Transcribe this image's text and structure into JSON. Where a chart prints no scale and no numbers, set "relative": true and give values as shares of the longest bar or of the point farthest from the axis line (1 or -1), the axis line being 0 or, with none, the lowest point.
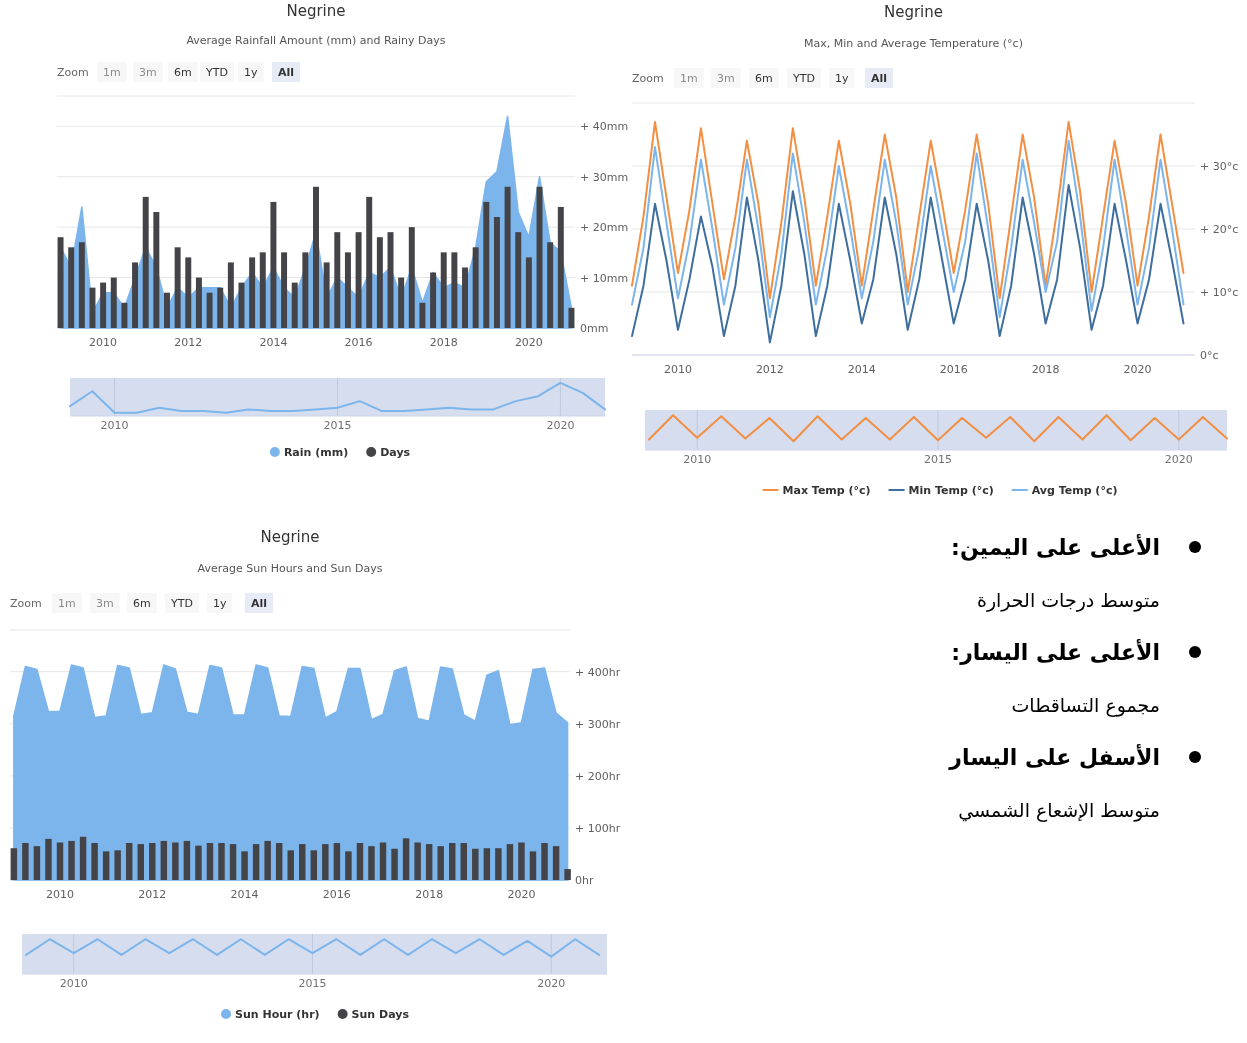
{
  "chart_data": [
    {
      "type": "bar",
      "title": "Negrine",
      "subtitle": "Average Rainfall Amount (mm) and Rainy Days",
      "annotations": [
        "Zoom",
        "1m",
        "3m",
        "6m",
        "YTD",
        "1y",
        "All"
      ],
      "x": [
        "2009-01",
        "2009-04",
        "2009-07",
        "2009-10",
        "2010-01",
        "2010-04",
        "2010-07",
        "2010-10",
        "2011-01",
        "2011-04",
        "2011-07",
        "2011-10",
        "2012-01",
        "2012-04",
        "2012-07",
        "2012-10",
        "2013-01",
        "2013-04",
        "2013-07",
        "2013-10",
        "2014-01",
        "2014-04",
        "2014-07",
        "2014-10",
        "2015-01",
        "2015-04",
        "2015-07",
        "2015-10",
        "2016-01",
        "2016-04",
        "2016-07",
        "2016-10",
        "2017-01",
        "2017-04",
        "2017-07",
        "2017-10",
        "2018-01",
        "2018-04",
        "2018-07",
        "2018-10",
        "2019-01",
        "2019-04",
        "2019-07",
        "2019-10",
        "2020-01",
        "2020-04",
        "2020-07",
        "2020-10",
        "2021-01"
      ],
      "series": [
        {
          "name": "Rain (mm)",
          "type": "area",
          "color": "#7cb5ec",
          "values": [
            16,
            12,
            24,
            3,
            7,
            7,
            4,
            10,
            16,
            12,
            4,
            8,
            6,
            8,
            8,
            8,
            4,
            8,
            11,
            8,
            12,
            8,
            6,
            12,
            19,
            6,
            10,
            8,
            6,
            11,
            10,
            12,
            6,
            12,
            5,
            11,
            8,
            9,
            8,
            16,
            29,
            31,
            42,
            23,
            18,
            30,
            17,
            15,
            4
          ]
        },
        {
          "name": "Days",
          "type": "bar",
          "color": "#434348",
          "values": [
            18,
            16,
            17,
            8,
            9,
            10,
            5,
            13,
            26,
            23,
            7,
            16,
            14,
            10,
            7,
            8,
            13,
            9,
            14,
            15,
            25,
            15,
            9,
            15,
            28,
            13,
            19,
            15,
            19,
            26,
            18,
            19,
            10,
            20,
            5,
            11,
            15,
            15,
            12,
            16,
            25,
            22,
            28,
            19,
            14,
            28,
            17,
            24,
            4
          ]
        }
      ],
      "xlim": [
        "2008-12",
        "2021-02"
      ],
      "ylim": [
        0,
        46
      ],
      "xticks": [
        "2010",
        "2012",
        "2014",
        "2016",
        "2018",
        "2020"
      ],
      "yticks": [
        {
          "value": 0,
          "label": "0mm"
        },
        {
          "value": 10,
          "label": "+ 10mm"
        },
        {
          "value": 20,
          "label": "+ 20mm"
        },
        {
          "value": 30,
          "label": "+ 30mm"
        },
        {
          "value": 40,
          "label": "+ 40mm"
        }
      ],
      "grid": "y",
      "legend": "bottom"
    },
    {
      "type": "line",
      "relative": true,
      "x": [
        "2009-01",
        "2009-07",
        "2010-01",
        "2010-07",
        "2011-01",
        "2011-07",
        "2012-01",
        "2012-07",
        "2013-01",
        "2013-07",
        "2014-01",
        "2014-07",
        "2015-01",
        "2015-07",
        "2016-01",
        "2016-07",
        "2017-01",
        "2017-07",
        "2018-01",
        "2018-07",
        "2019-01",
        "2019-07",
        "2020-01",
        "2020-07",
        "2021-01"
      ],
      "series": [
        {
          "color": "#7cb5ec",
          "values": [
            0.3,
            0.75,
            0.1,
            0.1,
            0.25,
            0.15,
            0.15,
            0.1,
            0.2,
            0.15,
            0.15,
            0.2,
            0.25,
            0.45,
            0.15,
            0.15,
            0.2,
            0.25,
            0.2,
            0.2,
            0.45,
            0.6,
            1,
            0.7,
            0.2
          ]
        }
      ],
      "xlim": [
        "2009",
        "2021"
      ],
      "xticks": [
        "2010",
        "2015",
        "2020"
      ],
      "grid": "x"
    },
    {
      "type": "line",
      "title": "Negrine",
      "subtitle": "Max, Min and Average Temperature (°c)",
      "annotations": [
        "Zoom",
        "1m",
        "3m",
        "6m",
        "YTD",
        "1y",
        "All"
      ],
      "x": [
        "2009-01",
        "2009-04",
        "2009-07",
        "2009-10",
        "2010-01",
        "2010-04",
        "2010-07",
        "2010-10",
        "2011-01",
        "2011-04",
        "2011-07",
        "2011-10",
        "2012-01",
        "2012-04",
        "2012-07",
        "2012-10",
        "2013-01",
        "2013-04",
        "2013-07",
        "2013-10",
        "2014-01",
        "2014-04",
        "2014-07",
        "2014-10",
        "2015-01",
        "2015-04",
        "2015-07",
        "2015-10",
        "2016-01",
        "2016-04",
        "2016-07",
        "2016-10",
        "2017-01",
        "2017-04",
        "2017-07",
        "2017-10",
        "2018-01",
        "2018-04",
        "2018-07",
        "2018-10",
        "2019-01",
        "2019-04",
        "2019-07",
        "2019-10",
        "2020-01",
        "2020-04",
        "2020-07",
        "2020-10",
        "2021-01"
      ],
      "series": [
        {
          "name": "Max Temp (°c)",
          "color": "#f28f43",
          "values": [
            11,
            22,
            37,
            25,
            13,
            23,
            36,
            24,
            12,
            22,
            34,
            24,
            9,
            21,
            36,
            25,
            11,
            22,
            34,
            24,
            11,
            23,
            35,
            25,
            10,
            22,
            34,
            24,
            13,
            23,
            35,
            24,
            9,
            22,
            35,
            25,
            11,
            23,
            37,
            26,
            10,
            22,
            34,
            24,
            11,
            22,
            35,
            24,
            13
          ]
        },
        {
          "name": "Min Temp (°c)",
          "color": "#3d6e9e",
          "values": [
            3,
            11,
            24,
            15,
            4,
            12,
            22,
            14,
            3,
            11,
            25,
            15,
            2,
            11,
            26,
            16,
            3,
            11,
            24,
            15,
            5,
            12,
            25,
            16,
            4,
            12,
            25,
            15,
            5,
            12,
            24,
            15,
            3,
            11,
            25,
            16,
            5,
            12,
            27,
            17,
            4,
            11,
            24,
            15,
            5,
            12,
            24,
            15,
            5
          ]
        },
        {
          "name": "Avg Temp (°c)",
          "color": "#7cb5ec",
          "values": [
            8,
            17,
            33,
            21,
            9,
            18,
            31,
            20,
            8,
            17,
            31,
            20,
            6,
            16,
            32,
            21,
            8,
            17,
            30,
            20,
            9,
            18,
            31,
            21,
            8,
            17,
            30,
            20,
            10,
            18,
            32,
            20,
            6,
            17,
            31,
            21,
            10,
            18,
            34,
            22,
            7,
            17,
            31,
            20,
            8,
            17,
            31,
            20,
            8
          ]
        }
      ],
      "xlim": [
        "2009-01",
        "2021-04"
      ],
      "ylim": [
        0,
        40
      ],
      "xticks": [
        "2010",
        "2012",
        "2014",
        "2016",
        "2018",
        "2020"
      ],
      "yticks": [
        {
          "value": 0,
          "label": "0°c"
        },
        {
          "value": 10,
          "label": "+ 10°c"
        },
        {
          "value": 20,
          "label": "+ 20°c"
        },
        {
          "value": 30,
          "label": "+ 30°c"
        }
      ],
      "grid": "y",
      "legend": "bottom"
    },
    {
      "type": "line",
      "relative": true,
      "x": [
        "2009-01",
        "2009-07",
        "2010-01",
        "2010-07",
        "2011-01",
        "2011-07",
        "2012-01",
        "2012-07",
        "2013-01",
        "2013-07",
        "2014-01",
        "2014-07",
        "2015-01",
        "2015-07",
        "2016-01",
        "2016-07",
        "2017-01",
        "2017-07",
        "2018-01",
        "2018-07",
        "2019-01",
        "2019-07",
        "2020-01",
        "2020-07",
        "2021-01"
      ],
      "series": [
        {
          "color": "#f28f43",
          "values": [
            0.3,
            1,
            0.35,
            0.97,
            0.33,
            0.92,
            0.25,
            0.97,
            0.3,
            0.92,
            0.3,
            0.95,
            0.28,
            0.92,
            0.35,
            0.95,
            0.25,
            0.95,
            0.3,
            1,
            0.28,
            0.92,
            0.3,
            0.95,
            0.33
          ]
        }
      ],
      "xlim": [
        "2008-12",
        "2021-01"
      ],
      "xticks": [
        "2010",
        "2015",
        "2020"
      ],
      "grid": "x"
    },
    {
      "type": "bar",
      "title": "Negrine",
      "subtitle": "Average Sun Hours and Sun Days",
      "annotations": [
        "Zoom",
        "1m",
        "3m",
        "6m",
        "YTD",
        "1y",
        "All"
      ],
      "x": [
        "2009-01",
        "2009-04",
        "2009-07",
        "2009-10",
        "2010-01",
        "2010-04",
        "2010-07",
        "2010-10",
        "2011-01",
        "2011-04",
        "2011-07",
        "2011-10",
        "2012-01",
        "2012-04",
        "2012-07",
        "2012-10",
        "2013-01",
        "2013-04",
        "2013-07",
        "2013-10",
        "2014-01",
        "2014-04",
        "2014-07",
        "2014-10",
        "2015-01",
        "2015-04",
        "2015-07",
        "2015-10",
        "2016-01",
        "2016-04",
        "2016-07",
        "2016-10",
        "2017-01",
        "2017-04",
        "2017-07",
        "2017-10",
        "2018-01",
        "2018-04",
        "2018-07",
        "2018-10",
        "2019-01",
        "2019-04",
        "2019-07",
        "2019-10",
        "2020-01",
        "2020-04",
        "2020-07",
        "2020-10",
        "2021-01"
      ],
      "series": [
        {
          "name": "Sun Hour (hr)",
          "type": "area",
          "color": "#7cb5ec",
          "values": [
            315,
            410,
            404,
            323,
            324,
            413,
            407,
            312,
            315,
            412,
            407,
            318,
            321,
            413,
            405,
            322,
            318,
            412,
            407,
            317,
            317,
            413,
            407,
            315,
            314,
            410,
            406,
            311,
            323,
            406,
            406,
            308,
            318,
            402,
            409,
            310,
            305,
            409,
            405,
            317,
            305,
            393,
            402,
            298,
            302,
            404,
            407,
            321,
            302
          ]
        },
        {
          "name": "Sun Days",
          "type": "bar",
          "color": "#434348",
          "values": [
            61,
            71,
            65,
            79,
            72,
            75,
            83,
            71,
            55,
            57,
            71,
            69,
            71,
            75,
            72,
            75,
            66,
            71,
            71,
            69,
            55,
            69,
            75,
            71,
            57,
            69,
            57,
            69,
            71,
            55,
            71,
            65,
            72,
            60,
            80,
            72,
            69,
            65,
            71,
            71,
            60,
            61,
            61,
            69,
            72,
            55,
            71,
            65,
            21
          ]
        }
      ],
      "xlim": [
        "2008-12",
        "2021-01-20"
      ],
      "ylim": [
        0,
        480
      ],
      "xticks": [
        "2010",
        "2012",
        "2014",
        "2016",
        "2018",
        "2020"
      ],
      "yticks": [
        {
          "value": 0,
          "label": "0hr"
        },
        {
          "value": 100,
          "label": "+ 100hr"
        },
        {
          "value": 200,
          "label": "+ 200hr"
        },
        {
          "value": 300,
          "label": "+ 300hr"
        },
        {
          "value": 400,
          "label": "+ 400hr"
        }
      ],
      "grid": "y",
      "legend": "bottom"
    },
    {
      "type": "line",
      "relative": true,
      "x": [
        "2009-01",
        "2009-07",
        "2010-01",
        "2010-07",
        "2011-01",
        "2011-07",
        "2012-01",
        "2012-07",
        "2013-01",
        "2013-07",
        "2014-01",
        "2014-07",
        "2015-01",
        "2015-07",
        "2016-01",
        "2016-07",
        "2017-01",
        "2017-07",
        "2018-01",
        "2018-07",
        "2019-01",
        "2019-07",
        "2020-01",
        "2020-07",
        "2021-01"
      ],
      "series": [
        {
          "color": "#7cb5ec",
          "values": [
            0.55,
            1,
            0.6,
            1,
            0.55,
            1,
            0.6,
            1,
            0.55,
            1,
            0.55,
            1,
            0.6,
            1,
            0.55,
            1,
            0.55,
            1,
            0.6,
            1,
            0.55,
            0.95,
            0.5,
            1,
            0.55
          ]
        }
      ],
      "xlim": [
        "2008-12",
        "2021-03"
      ],
      "xticks": [
        "2010",
        "2015",
        "2020"
      ],
      "grid": "x"
    },
    {
      "type": "other",
      "annotations": [
        "الأعلى على اليمين:",
        "متوسط درجات الحرارة",
        "الأعلى على اليسار:",
        "مجموع التساقطات",
        "الأسفل على اليسار",
        "متوسط الإشعاع الشمسي"
      ]
    }
  ]
}
